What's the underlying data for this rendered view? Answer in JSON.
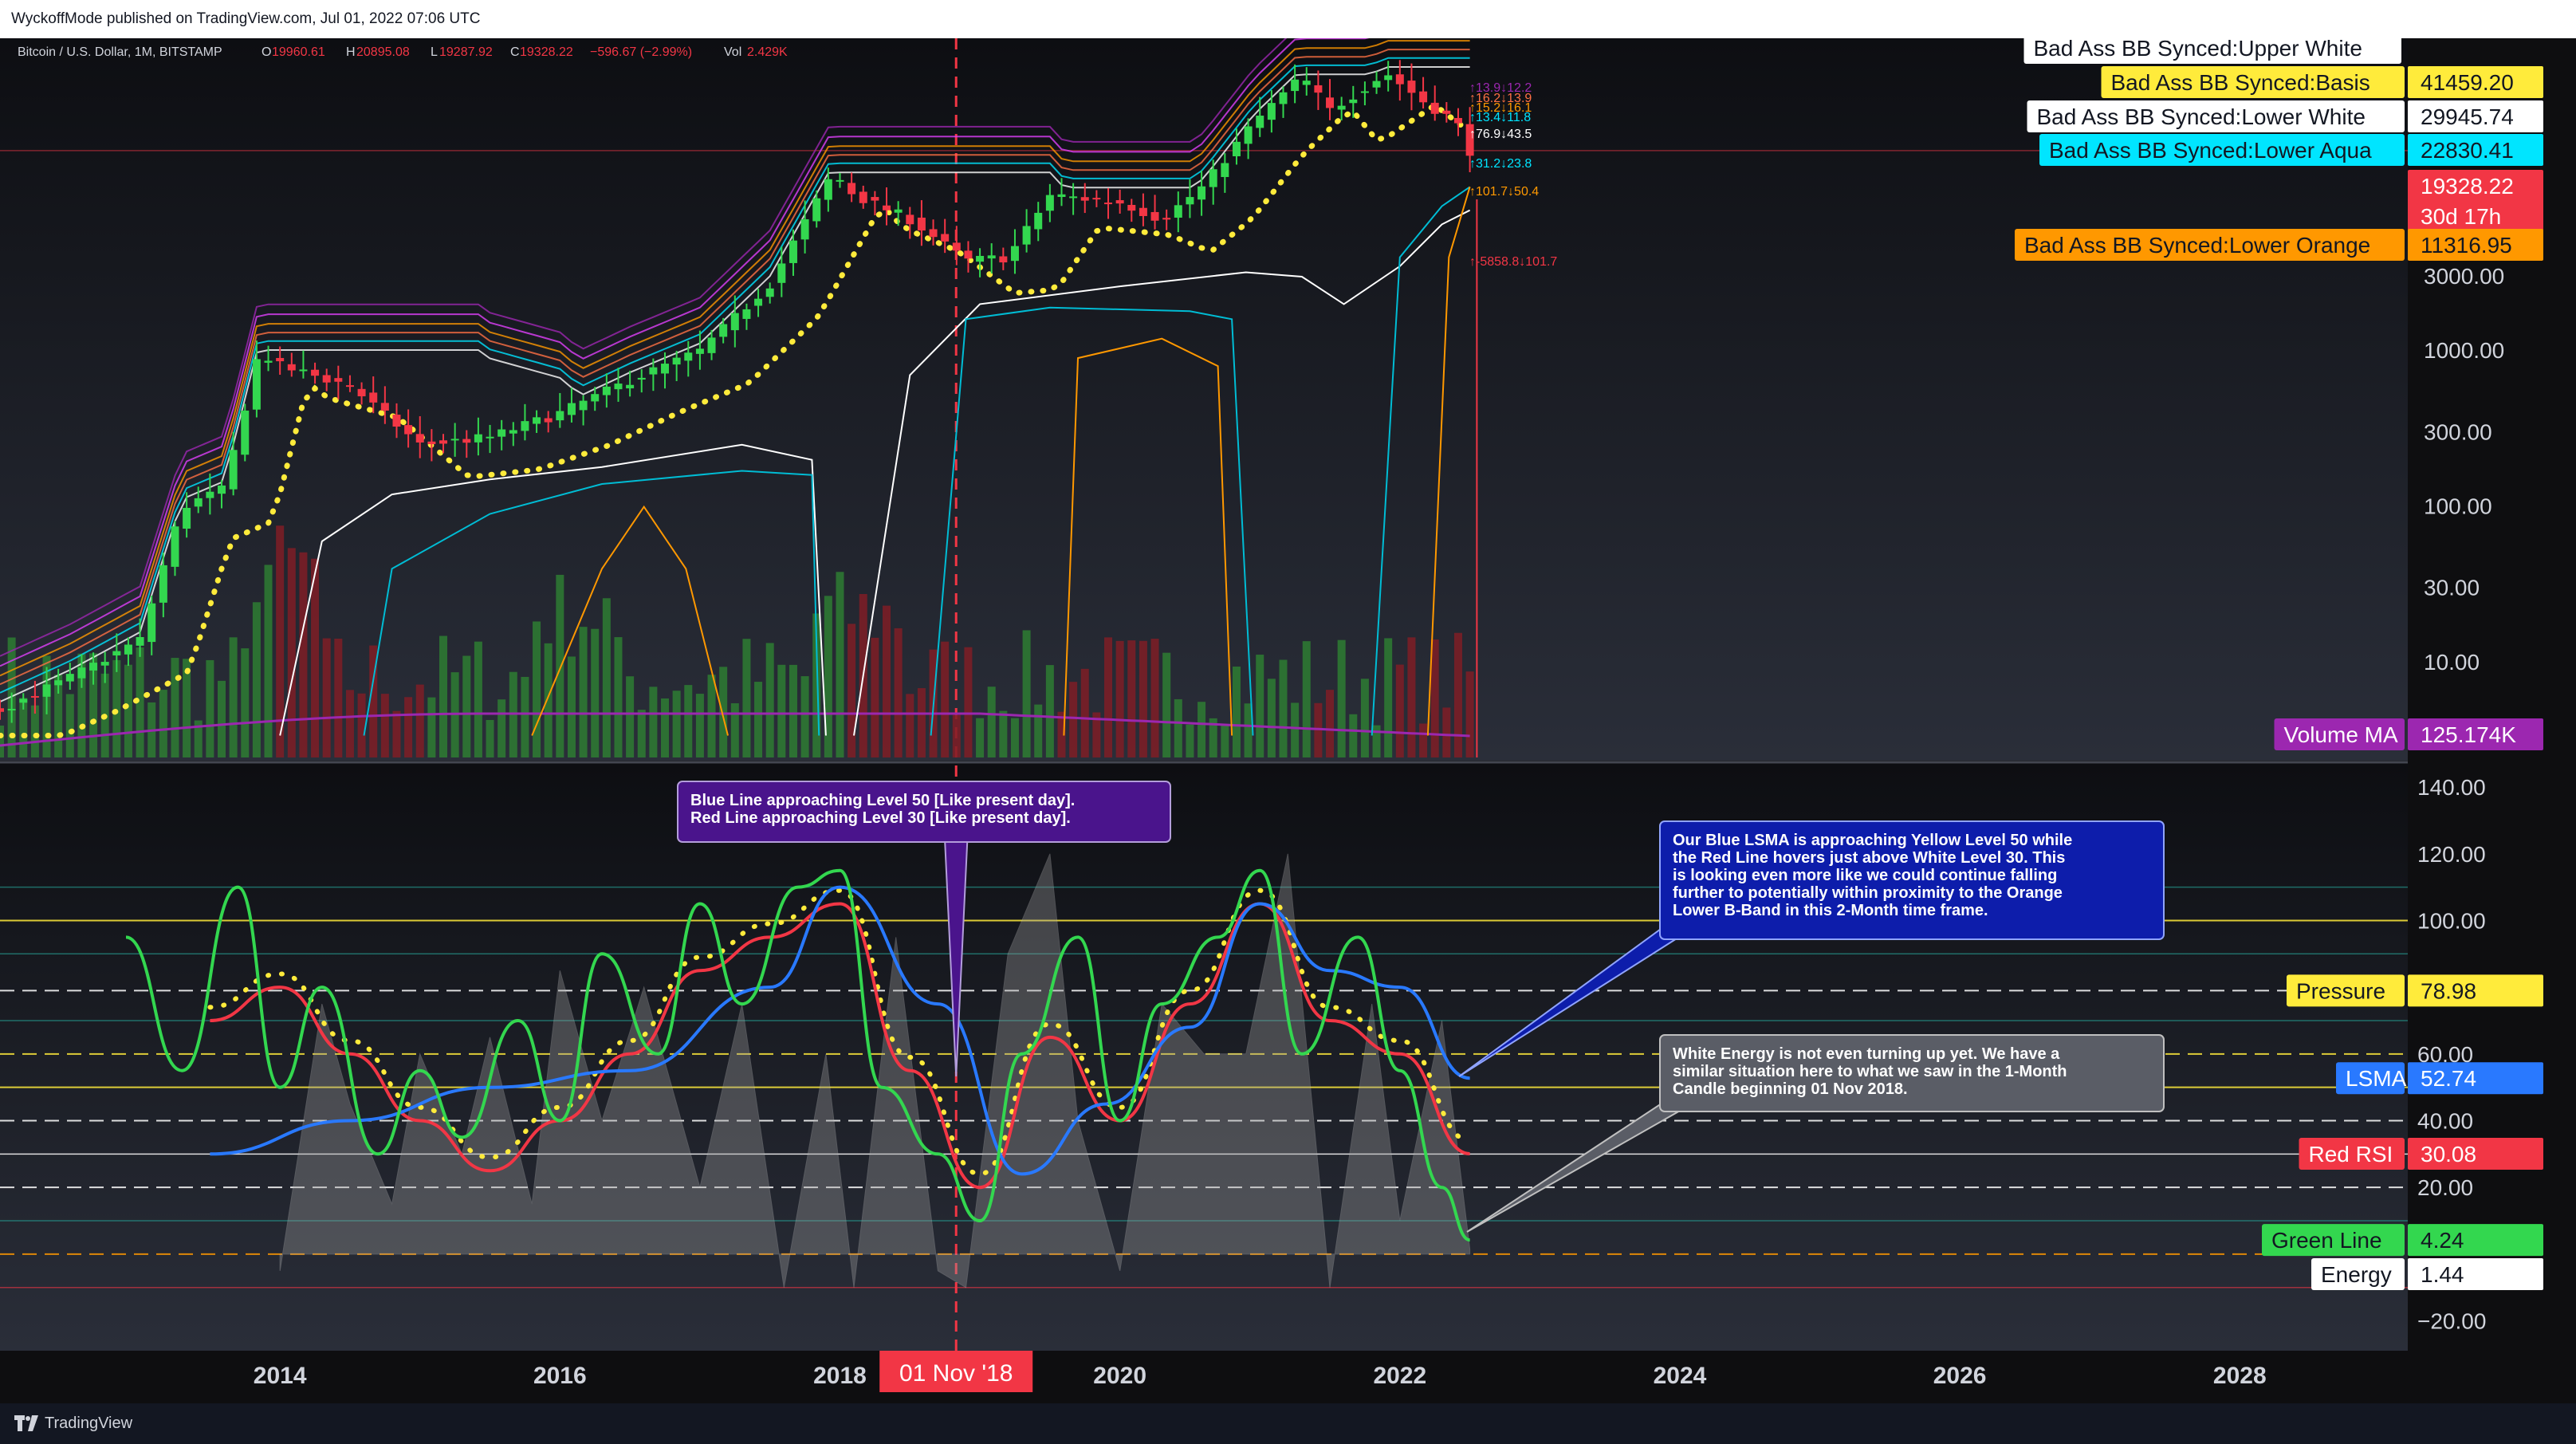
{
  "header": {
    "publisher": "WyckoffMode published on TradingView.com, Jul 01, 2022 07:06 UTC",
    "symbol": "Bitcoin / U.S. Dollar, 1M, BITSTAMP",
    "ohlc": {
      "o_label": "O",
      "o": "19960.61",
      "h_label": "H",
      "h": "20895.08",
      "l_label": "L",
      "l": "19287.92",
      "c_label": "C",
      "c": "19328.22",
      "change": "−596.67 (−2.99%)",
      "vol_label": "Vol",
      "vol": "2.429K"
    }
  },
  "footer": {
    "brand": "TradingView"
  },
  "colors": {
    "bg": "#131722",
    "up": "#26a69a",
    "green": "#33d74f",
    "red": "#f23645",
    "yellow": "#ffeb3b",
    "aqua": "#00e5ff",
    "orange": "#ff9800",
    "purple": "#9c27b0",
    "blue": "#2962ff"
  },
  "chart_data": [
    {
      "type": "line",
      "title": "Bitcoin / U.S. Dollar, 1M, BITSTAMP",
      "yscale": "log",
      "ylabel": "USD",
      "y_ticks": [
        "3000.00",
        "1000.00",
        "300.00",
        "100.00",
        "30.00",
        "10.00"
      ],
      "x_ticks": [
        "2014",
        "2016",
        "2018",
        "2020",
        "2022",
        "2024",
        "2026",
        "2028"
      ],
      "xlim": [
        2012.0,
        2029.2
      ],
      "ylim_log": [
        3.3,
        62000
      ],
      "marker": {
        "x": 2018.83,
        "label": "01 Nov '18"
      },
      "series": [
        {
          "name": "Bad Ass BB Synced:Upper White",
          "value_label": "41459.20"
        },
        {
          "name": "Bad Ass BB Synced:Basis",
          "value_label": "41459.20"
        },
        {
          "name": "Bad Ass BB Synced:Lower White",
          "value_label": "29945.74"
        },
        {
          "name": "Bad Ass BB Synced:Lower Aqua",
          "value_label": "22830.41"
        },
        {
          "name": "Bad Ass BB Synced:Lower Orange",
          "value_label": "11316.95"
        },
        {
          "name": "",
          "value_label": "19328.22",
          "sub_label": "30d 17h"
        },
        {
          "name": "Volume MA",
          "value_label": "125.174K"
        }
      ],
      "price_path": {
        "x": [
          2012.0,
          2012.5,
          2013.0,
          2013.3,
          2013.6,
          2013.85,
          2014.0,
          2014.5,
          2015.0,
          2015.5,
          2016.0,
          2016.5,
          2017.0,
          2017.5,
          2017.95,
          2018.1,
          2018.5,
          2018.9,
          2019.2,
          2019.5,
          2020.0,
          2020.3,
          2020.6,
          2020.95,
          2021.3,
          2021.5,
          2021.9,
          2022.2,
          2022.4,
          2022.5
        ],
        "y": [
          5,
          8,
          14,
          100,
          130,
          1000,
          800,
          600,
          250,
          280,
          400,
          650,
          1000,
          2700,
          14000,
          10000,
          7000,
          3800,
          4000,
          10000,
          9000,
          7000,
          11500,
          29000,
          58000,
          35000,
          61000,
          38000,
          30000,
          19328
        ]
      },
      "annotations": [
        "↑13.9↓12.2",
        "↑16.2↓13.9",
        "↑15.2↓16.1",
        "↑13.4↓11.8",
        "↑76.9↓43.5",
        "↑31.2↓23.8",
        "↑101.7↓50.4",
        "↑-5858.8↓101.7"
      ]
    },
    {
      "type": "line",
      "y_ticks": [
        "140.00",
        "120.00",
        "100.00",
        "80.00",
        "60.00",
        "40.00",
        "20.00",
        "−20.00"
      ],
      "ylim": [
        -28,
        146
      ],
      "levels": [
        100,
        78.98,
        60,
        50,
        40,
        30,
        20,
        0
      ],
      "series": [
        {
          "name": "Pressure",
          "value_label": "78.98"
        },
        {
          "name": "LSMA",
          "value_label": "52.74",
          "x": [
            2013.5,
            2014.5,
            2015.5,
            2016.5,
            2017.5,
            2018.0,
            2018.7,
            2019.3,
            2019.9,
            2020.5,
            2021.0,
            2021.5,
            2022.0,
            2022.5
          ],
          "y": [
            30,
            40,
            50,
            55,
            80,
            110,
            75,
            24,
            45,
            68,
            105,
            85,
            80,
            52.74
          ]
        },
        {
          "name": "Red RSI",
          "value_label": "30.08",
          "x": [
            2013.5,
            2014.0,
            2014.5,
            2015.0,
            2015.5,
            2016.0,
            2016.5,
            2017.0,
            2017.5,
            2018.0,
            2018.5,
            2019.0,
            2019.5,
            2020.0,
            2020.5,
            2021.0,
            2021.5,
            2022.0,
            2022.5
          ],
          "y": [
            70,
            80,
            60,
            40,
            25,
            40,
            60,
            85,
            95,
            105,
            55,
            20,
            65,
            40,
            75,
            105,
            70,
            60,
            30.08
          ]
        },
        {
          "name": "Green Line",
          "value_label": "4.24",
          "x": [
            2012.9,
            2013.3,
            2013.7,
            2014.0,
            2014.3,
            2014.7,
            2015.0,
            2015.3,
            2015.7,
            2016.0,
            2016.3,
            2016.7,
            2017.0,
            2017.3,
            2017.7,
            2018.0,
            2018.3,
            2018.7,
            2019.0,
            2019.3,
            2019.7,
            2020.0,
            2020.3,
            2020.7,
            2021.0,
            2021.3,
            2021.7,
            2022.0,
            2022.3,
            2022.5
          ],
          "y": [
            95,
            55,
            110,
            50,
            80,
            30,
            55,
            35,
            70,
            40,
            90,
            60,
            105,
            75,
            110,
            115,
            50,
            30,
            10,
            60,
            95,
            40,
            75,
            95,
            115,
            60,
            95,
            55,
            20,
            4.24
          ]
        },
        {
          "name": "Energy",
          "value_label": "1.44"
        }
      ],
      "notes": [
        {
          "lines": [
            "Blue Line approaching Level 50 [Like present day].",
            "Red Line approaching Level 30 [Like present day]."
          ]
        },
        {
          "lines": [
            "Our Blue LSMA is approaching Yellow Level 50 while",
            "the Red Line hovers just above White Level 30.  This",
            "is looking even more like we could continue falling",
            "further to potentially within proximity to the Orange",
            "Lower B-Band in this 2-Month time frame."
          ]
        },
        {
          "lines": [
            "White Energy is not even turning up yet. We have a",
            "similar situation here to what we saw in the 1-Month",
            "Candle beginning 01 Nov 2018."
          ]
        }
      ]
    }
  ]
}
